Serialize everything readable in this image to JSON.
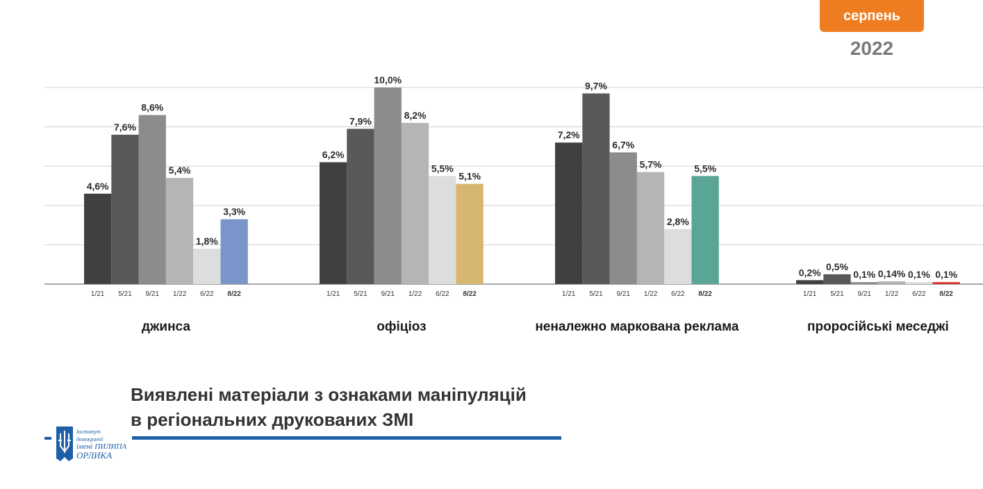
{
  "header": {
    "month": "серпень",
    "year": "2022"
  },
  "title": {
    "line1": "Виявлені матеріали з ознаками маніпуляцій",
    "line2": "в регіональних друкованих ЗМІ"
  },
  "logo": {
    "line1": "Інститут демократії",
    "line2": "імені ПИЛИПА",
    "line3": "ОРЛИКА"
  },
  "chart_data": {
    "type": "bar",
    "ylim": [
      0,
      10
    ],
    "grid": true,
    "categories": [
      "1/21",
      "5/21",
      "9/21",
      "1/22",
      "6/22",
      "8/22"
    ],
    "groups": [
      {
        "name": "джинса",
        "values": [
          4.6,
          7.6,
          8.6,
          5.4,
          1.8,
          3.3
        ],
        "labels": [
          "4,6%",
          "7,6%",
          "8,6%",
          "5,4%",
          "1,8%",
          "3,3%"
        ],
        "highlight_color": "#7a95c9"
      },
      {
        "name": "офіціоз",
        "values": [
          6.2,
          7.9,
          10.0,
          8.2,
          5.5,
          5.1
        ],
        "labels": [
          "6,2%",
          "7,9%",
          "10,0%",
          "8,2%",
          "5,5%",
          "5,1%"
        ],
        "highlight_color": "#d7b670"
      },
      {
        "name": "неналежно маркована реклама",
        "values": [
          7.2,
          9.7,
          6.7,
          5.7,
          2.8,
          5.5
        ],
        "labels": [
          "7,2%",
          "9,7%",
          "6,7%",
          "5,7%",
          "2,8%",
          "5,5%"
        ],
        "highlight_color": "#5aa595"
      },
      {
        "name": "проросійські меседжі",
        "values": [
          0.2,
          0.5,
          0.1,
          0.14,
          0.1,
          0.1
        ],
        "labels": [
          "0,2%",
          "0,5%",
          "0,1%",
          "0,14%",
          "0,1%",
          "0,1%"
        ],
        "highlight_color": "#d9322e"
      }
    ],
    "bar_colors": [
      "#404040",
      "#595959",
      "#8c8c8c",
      "#b4b6b6",
      "#dcdddd"
    ]
  }
}
